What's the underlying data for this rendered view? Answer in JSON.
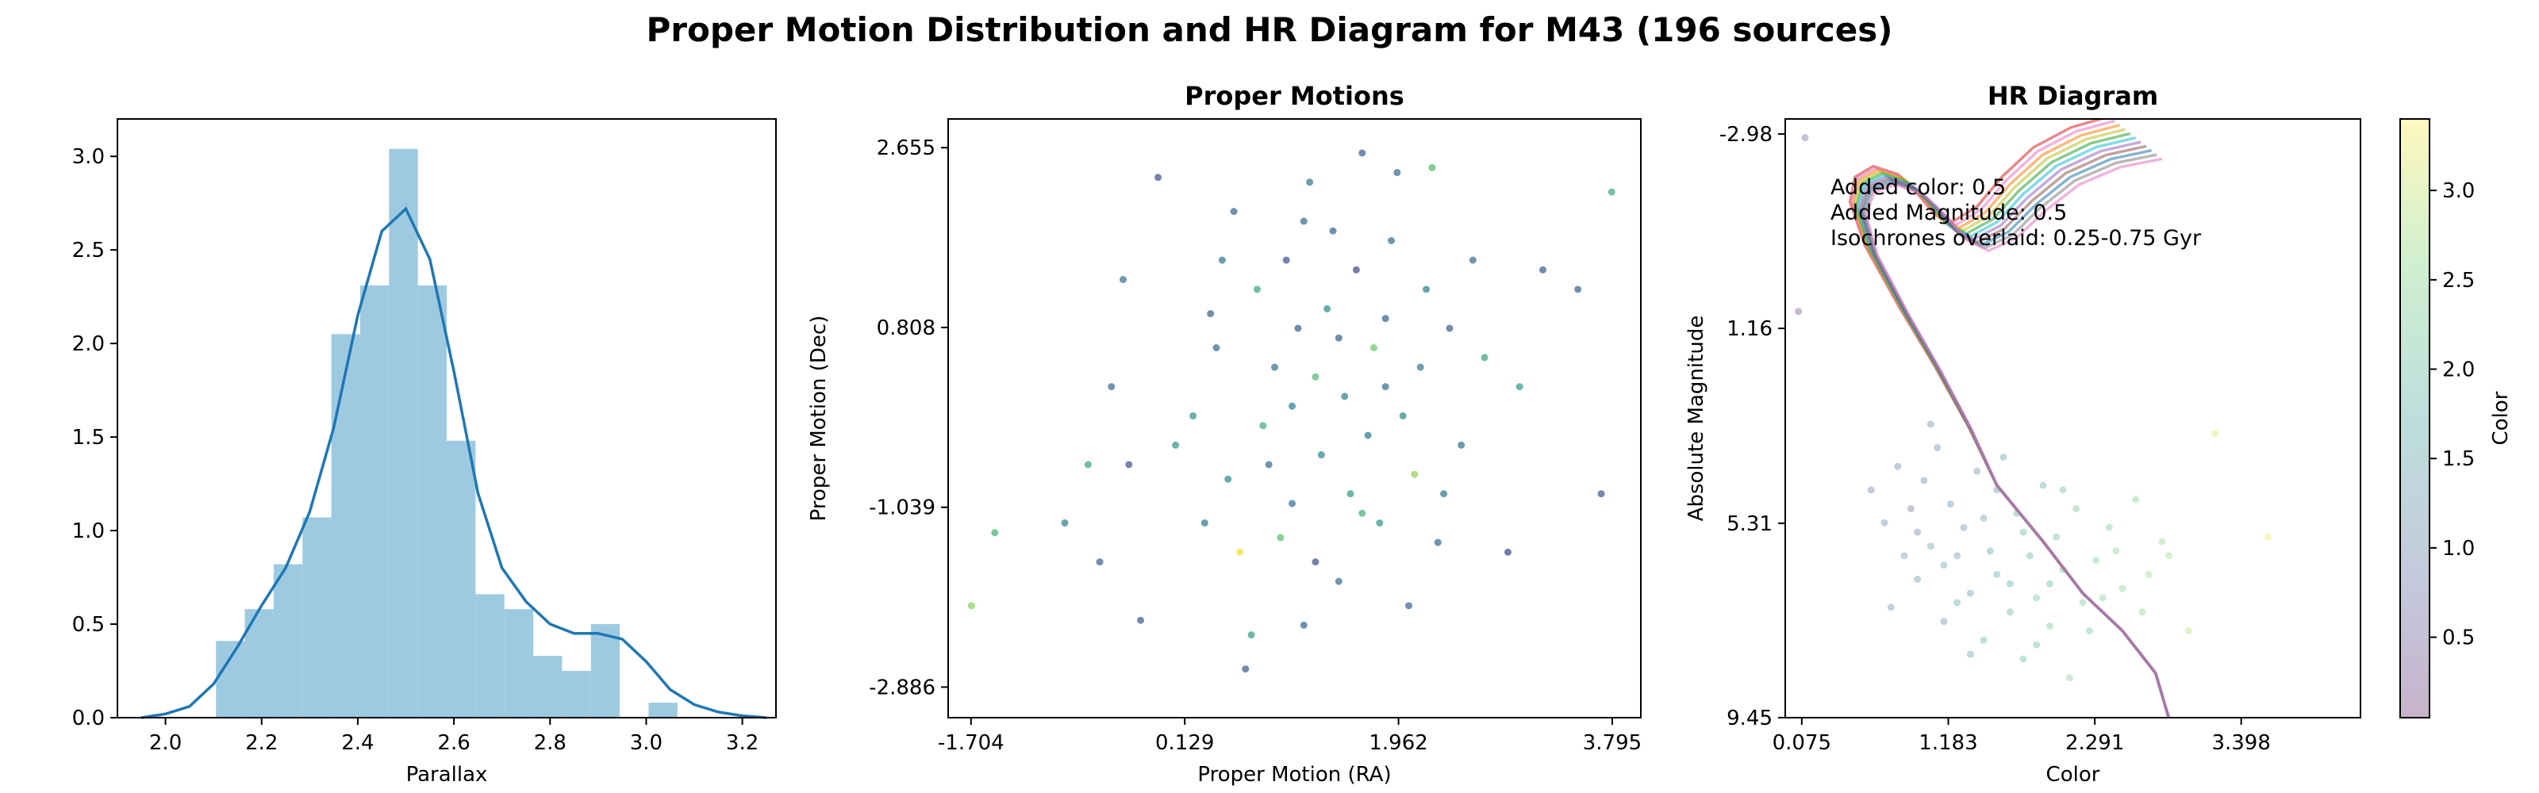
{
  "figure": {
    "title": "Proper Motion Distribution and HR Diagram for M43 (196 sources)"
  },
  "colors": {
    "hist_fill": "#9ecae1",
    "kde_line": "#1f77b4",
    "viridis": [
      "#440154",
      "#3b528b",
      "#21918c",
      "#5ec962",
      "#fde725"
    ],
    "isochrones": [
      "#d62728",
      "#e377c2",
      "#ff7f0e",
      "#bcbd22",
      "#2ca02c",
      "#17becf",
      "#9467bd",
      "#8c564b",
      "#1f77b4",
      "#7f7f7f",
      "#e377c2"
    ]
  },
  "chart_data": [
    {
      "type": "histogram",
      "title": "",
      "xlabel": "Parallax",
      "ylabel": "",
      "xlim": [
        1.9,
        3.27
      ],
      "ylim": [
        0,
        3.2
      ],
      "xticks": [
        2.0,
        2.2,
        2.4,
        2.6,
        2.8,
        3.0,
        3.2
      ],
      "yticks": [
        0.0,
        0.5,
        1.0,
        1.5,
        2.0,
        2.5,
        3.0
      ],
      "bin_edges": [
        2.105,
        2.165,
        2.225,
        2.285,
        2.345,
        2.405,
        2.465,
        2.525,
        2.585,
        2.645,
        2.705,
        2.765,
        2.825,
        2.885,
        2.945,
        3.005,
        3.065,
        3.125
      ],
      "densities": [
        0.41,
        0.58,
        0.82,
        1.07,
        2.05,
        2.31,
        3.04,
        2.31,
        1.48,
        0.66,
        0.58,
        0.33,
        0.25,
        0.5,
        0.0,
        0.08,
        0.0
      ],
      "kde": {
        "x": [
          1.95,
          2.0,
          2.05,
          2.1,
          2.15,
          2.2,
          2.25,
          2.3,
          2.35,
          2.4,
          2.45,
          2.5,
          2.55,
          2.6,
          2.65,
          2.7,
          2.75,
          2.8,
          2.85,
          2.9,
          2.95,
          3.0,
          3.05,
          3.1,
          3.15,
          3.2,
          3.25
        ],
        "y": [
          0.0,
          0.02,
          0.06,
          0.18,
          0.38,
          0.6,
          0.8,
          1.1,
          1.55,
          2.15,
          2.6,
          2.72,
          2.45,
          1.85,
          1.2,
          0.8,
          0.62,
          0.5,
          0.45,
          0.45,
          0.42,
          0.3,
          0.15,
          0.07,
          0.03,
          0.01,
          0.0
        ]
      }
    },
    {
      "type": "scatter",
      "title": "Proper Motions",
      "xlabel": "Proper Motion (RA)",
      "ylabel": "Proper Motion (Dec)",
      "xlim": [
        -1.9,
        4.04
      ],
      "ylim": [
        -3.2,
        2.95
      ],
      "xticks": [
        -1.704,
        0.129,
        1.962,
        3.795
      ],
      "yticks": [
        -2.886,
        -1.039,
        0.808,
        2.655
      ],
      "color_range": [
        0.1,
        3.4
      ],
      "points": [
        [
          -1.7,
          -2.05,
          2.8
        ],
        [
          -1.5,
          -1.3,
          2.2
        ],
        [
          -0.9,
          -1.2,
          1.5
        ],
        [
          -0.7,
          -0.6,
          2.0
        ],
        [
          -0.6,
          -1.6,
          1.1
        ],
        [
          -0.5,
          0.2,
          1.2
        ],
        [
          -0.4,
          1.3,
          1.3
        ],
        [
          -0.35,
          -0.6,
          0.9
        ],
        [
          -0.25,
          -2.2,
          1.0
        ],
        [
          -0.1,
          2.35,
          0.9
        ],
        [
          0.05,
          -0.4,
          1.8
        ],
        [
          0.2,
          -0.1,
          1.7
        ],
        [
          0.3,
          -1.2,
          1.4
        ],
        [
          0.4,
          0.6,
          1.2
        ],
        [
          0.5,
          -0.75,
          1.6
        ],
        [
          0.55,
          2.0,
          1.1
        ],
        [
          0.6,
          -1.5,
          3.3
        ],
        [
          0.65,
          -2.7,
          1.0
        ],
        [
          0.7,
          -2.35,
          1.9
        ],
        [
          0.75,
          1.2,
          2.0
        ],
        [
          0.8,
          -0.2,
          2.1
        ],
        [
          0.9,
          0.4,
          1.3
        ],
        [
          0.95,
          -1.35,
          2.4
        ],
        [
          1.0,
          1.5,
          0.9
        ],
        [
          1.05,
          -1.0,
          1.2
        ],
        [
          1.1,
          0.8,
          1.0
        ],
        [
          1.15,
          -2.25,
          1.1
        ],
        [
          1.2,
          2.3,
          1.4
        ],
        [
          1.25,
          0.3,
          2.3
        ],
        [
          1.3,
          -0.5,
          1.6
        ],
        [
          1.35,
          1.0,
          1.7
        ],
        [
          1.4,
          1.8,
          1.2
        ],
        [
          1.45,
          -1.8,
          1.3
        ],
        [
          1.5,
          0.1,
          1.5
        ],
        [
          1.55,
          -0.9,
          1.9
        ],
        [
          1.6,
          1.4,
          0.8
        ],
        [
          1.65,
          2.6,
          1.0
        ],
        [
          1.7,
          -0.3,
          1.4
        ],
        [
          1.75,
          0.6,
          2.6
        ],
        [
          1.8,
          -1.2,
          1.8
        ],
        [
          1.85,
          0.9,
          1.1
        ],
        [
          1.9,
          1.7,
          1.3
        ],
        [
          1.95,
          2.4,
          1.2
        ],
        [
          2.0,
          -0.1,
          1.6
        ],
        [
          2.05,
          -2.05,
          1.1
        ],
        [
          2.1,
          -0.7,
          2.8
        ],
        [
          2.15,
          0.4,
          1.4
        ],
        [
          2.2,
          1.2,
          1.5
        ],
        [
          2.25,
          2.45,
          2.3
        ],
        [
          2.3,
          -1.4,
          1.2
        ],
        [
          2.4,
          0.8,
          1.0
        ],
        [
          2.5,
          -0.4,
          1.3
        ],
        [
          2.6,
          1.5,
          1.2
        ],
        [
          2.7,
          0.5,
          2.0
        ],
        [
          2.9,
          -1.5,
          0.8
        ],
        [
          3.0,
          0.2,
          1.9
        ],
        [
          3.2,
          1.4,
          1.0
        ],
        [
          3.5,
          1.2,
          1.1
        ],
        [
          3.7,
          -0.9,
          1.0
        ],
        [
          3.79,
          2.2,
          2.1
        ],
        [
          0.45,
          1.5,
          1.4
        ],
        [
          0.85,
          -0.6,
          1.2
        ],
        [
          1.05,
          0.0,
          1.5
        ],
        [
          1.25,
          -1.6,
          0.9
        ],
        [
          1.45,
          0.7,
          1.0
        ],
        [
          1.65,
          -1.1,
          2.2
        ],
        [
          1.85,
          0.2,
          1.3
        ],
        [
          2.35,
          -0.9,
          1.4
        ],
        [
          0.35,
          0.95,
          1.1
        ],
        [
          1.15,
          1.9,
          1.2
        ]
      ]
    },
    {
      "type": "scatter",
      "title": "HR Diagram",
      "xlabel": "Color",
      "ylabel": "Absolute Magnitude",
      "xlim": [
        -0.05,
        4.3
      ],
      "ylim_inverted": [
        9.45,
        -3.3
      ],
      "xticks": [
        0.075,
        1.183,
        2.291,
        3.398
      ],
      "yticks": [
        -2.98,
        1.16,
        5.31,
        9.45
      ],
      "colorbar": {
        "label": "Color",
        "ticks": [
          0.5,
          1.0,
          1.5,
          2.0,
          2.5,
          3.0
        ],
        "range": [
          0.05,
          3.4
        ]
      },
      "annotations": [
        "Added color: 0.5",
        "Added Magnitude: 0.5",
        "Isochrones overlaid: 0.25-0.75 Gyr"
      ],
      "isochrone_ages_gyr": [
        0.25,
        0.3,
        0.35,
        0.4,
        0.45,
        0.5,
        0.55,
        0.6,
        0.65,
        0.7,
        0.75
      ],
      "isochrone_base": {
        "x": [
          2.85,
          2.75,
          2.5,
          2.2,
          1.9,
          1.55,
          1.35,
          1.1,
          0.85,
          0.6,
          0.5,
          0.55,
          0.7,
          0.9,
          1.05,
          1.2,
          1.35,
          1.55,
          1.75,
          2.0,
          2.3,
          2.6
        ],
        "y": [
          9.45,
          8.5,
          7.6,
          6.8,
          5.7,
          4.5,
          3.3,
          2.0,
          0.8,
          -0.5,
          -1.4,
          -1.9,
          -2.1,
          -1.9,
          -1.5,
          -1.0,
          -0.8,
          -1.1,
          -1.7,
          -2.3,
          -2.7,
          -2.9
        ]
      },
      "points": [
        [
          0.05,
          0.8,
          0.2
        ],
        [
          0.1,
          -2.9,
          0.5
        ],
        [
          0.6,
          4.6,
          0.9
        ],
        [
          0.7,
          5.3,
          1.1
        ],
        [
          0.8,
          4.1,
          1.0
        ],
        [
          0.85,
          6.0,
          1.2
        ],
        [
          0.9,
          5.0,
          0.8
        ],
        [
          0.95,
          6.5,
          1.3
        ],
        [
          1.0,
          4.4,
          1.0
        ],
        [
          1.05,
          5.8,
          1.4
        ],
        [
          1.1,
          3.7,
          1.1
        ],
        [
          1.15,
          6.2,
          1.5
        ],
        [
          1.2,
          4.9,
          1.2
        ],
        [
          1.25,
          7.0,
          1.6
        ],
        [
          1.3,
          5.4,
          1.3
        ],
        [
          1.35,
          6.8,
          1.4
        ],
        [
          1.4,
          4.2,
          1.2
        ],
        [
          1.45,
          7.8,
          1.8
        ],
        [
          1.5,
          5.9,
          1.6
        ],
        [
          1.55,
          6.4,
          1.7
        ],
        [
          1.6,
          3.9,
          1.5
        ],
        [
          1.65,
          7.2,
          1.9
        ],
        [
          1.7,
          5.1,
          1.8
        ],
        [
          1.75,
          8.2,
          2.0
        ],
        [
          1.8,
          6.0,
          1.9
        ],
        [
          1.85,
          6.9,
          2.1
        ],
        [
          1.9,
          4.5,
          1.8
        ],
        [
          1.95,
          7.5,
          2.2
        ],
        [
          2.0,
          5.6,
          2.0
        ],
        [
          2.05,
          6.3,
          2.1
        ],
        [
          2.1,
          8.6,
          2.3
        ],
        [
          2.15,
          5.0,
          2.2
        ],
        [
          2.2,
          7.0,
          2.3
        ],
        [
          2.3,
          6.1,
          2.4
        ],
        [
          2.4,
          5.4,
          2.3
        ],
        [
          2.5,
          6.7,
          2.5
        ],
        [
          2.6,
          4.8,
          2.4
        ],
        [
          2.7,
          6.4,
          2.7
        ],
        [
          2.8,
          5.7,
          2.6
        ],
        [
          3.0,
          7.6,
          2.9
        ],
        [
          3.2,
          3.4,
          3.1
        ],
        [
          3.6,
          5.6,
          3.3
        ],
        [
          0.75,
          7.1,
          1.1
        ],
        [
          1.05,
          3.2,
          1.0
        ],
        [
          1.35,
          8.1,
          1.5
        ],
        [
          1.55,
          4.6,
          1.4
        ],
        [
          1.75,
          5.5,
          1.9
        ],
        [
          1.95,
          6.6,
          2.0
        ],
        [
          2.25,
          7.6,
          2.2
        ],
        [
          2.45,
          5.9,
          2.4
        ],
        [
          2.65,
          7.2,
          2.5
        ],
        [
          2.85,
          6.0,
          2.7
        ],
        [
          0.95,
          5.5,
          1.0
        ],
        [
          1.25,
          6.0,
          1.3
        ],
        [
          1.45,
          5.2,
          1.5
        ],
        [
          1.85,
          7.9,
          1.9
        ],
        [
          2.05,
          4.6,
          2.0
        ],
        [
          2.35,
          6.9,
          2.3
        ],
        [
          1.65,
          6.6,
          1.7
        ],
        [
          1.15,
          7.4,
          1.2
        ]
      ]
    }
  ]
}
